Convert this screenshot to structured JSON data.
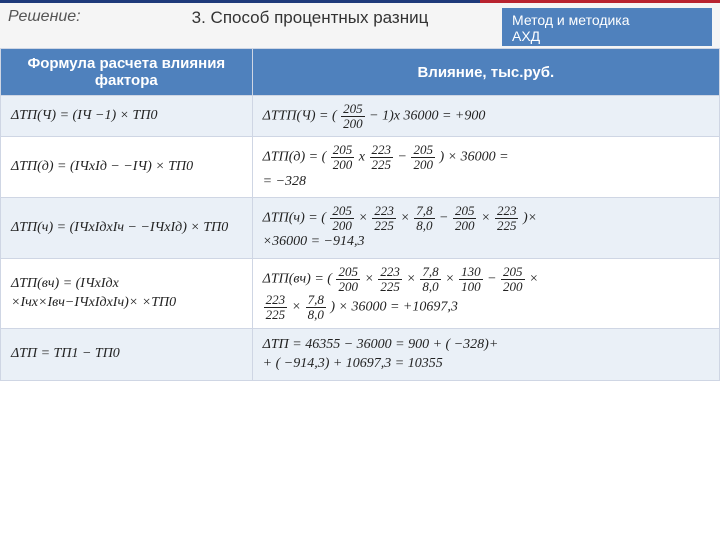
{
  "header": {
    "solution_label": "Решение:",
    "title": "3. Способ процентных разниц",
    "badge_line1": "Метод и методика",
    "badge_line2": "АХД"
  },
  "table": {
    "columns": [
      "Формула расчета влияния фактора",
      "Влияние, тыс.руб."
    ],
    "rows": [
      {
        "formula": "ΔТП(Ч)  = (IЧ  −1) × ТП0",
        "calc_html": "ΔТТП(Ч) = ( <span class='frac'><span class='num'>205</span><span class='den'>200</span></span> − 1)x 36000 = +900"
      },
      {
        "formula": "ΔТП(д)  = (IЧхIд  − −IЧ) × ТП0",
        "calc_html": "ΔТП(д)  = ( <span class='frac'><span class='num'>205</span><span class='den'>200</span></span> x <span class='frac'><span class='num'>223</span><span class='den'>225</span></span> − <span class='frac'><span class='num'>205</span><span class='den'>200</span></span> ) × 36000 =<br>= −328"
      },
      {
        "formula": "ΔТП(ч)  = (IЧхIдхIч  − −IЧхIд) × ТП0",
        "calc_html": "ΔТП(ч)  = ( <span class='frac'><span class='num'>205</span><span class='den'>200</span></span> × <span class='frac'><span class='num'>223</span><span class='den'>225</span></span> × <span class='frac'><span class='num'>7,8</span><span class='den'>8,0</span></span> − <span class='frac'><span class='num'>205</span><span class='den'>200</span></span> × <span class='frac'><span class='num'>223</span><span class='den'>225</span></span> )×<br>×36000 = −914,3"
      },
      {
        "formula": "ΔТП(вч)  = (IЧхIдх ×Iчх×Iвч−IЧхIдхIч)× ×ТП0",
        "calc_html": "ΔТП(вч)  = ( <span class='frac'><span class='num'>205</span><span class='den'>200</span></span> × <span class='frac'><span class='num'>223</span><span class='den'>225</span></span> × <span class='frac'><span class='num'>7,8</span><span class='den'>8,0</span></span> × <span class='frac'><span class='num'>130</span><span class='den'>100</span></span> − <span class='frac'><span class='num'>205</span><span class='den'>200</span></span> ×<br><span class='frac'><span class='num'>223</span><span class='den'>225</span></span> × <span class='frac'><span class='num'>7,8</span><span class='den'>8,0</span></span> ) × 36000 = +10697,3"
      },
      {
        "formula": "ΔТП = ТП1 − ТП0",
        "calc_html": "ΔТП = 46355 − 36000 = 900 + ( −328)+<br>+ ( −914,3) + 10697,3 = 10355"
      }
    ]
  },
  "colors": {
    "header_bg": "#4f81bd",
    "band_bg": "#eaf0f7",
    "stripe_blue": "#1f3a7a",
    "stripe_red": "#b8232f"
  }
}
